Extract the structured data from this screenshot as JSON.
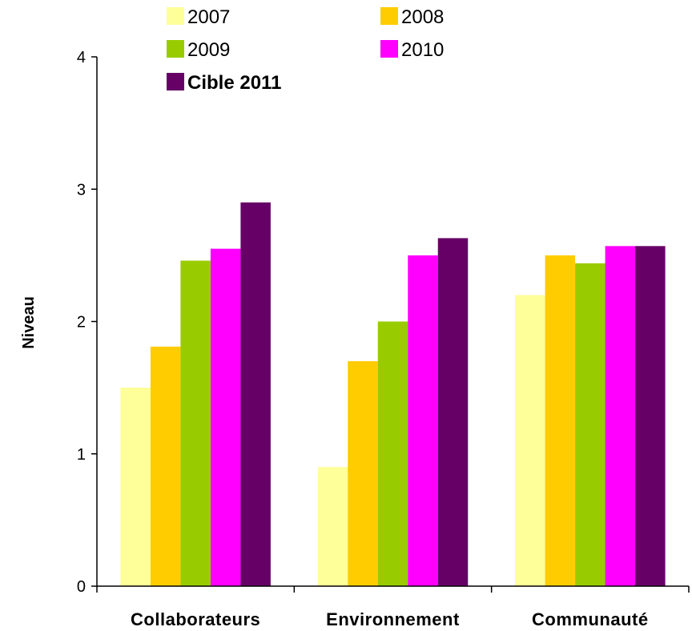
{
  "chart_data": {
    "type": "bar",
    "categories": [
      "Collaborateurs",
      "Environnement",
      "Communauté"
    ],
    "series": [
      {
        "name": "2007",
        "color": "#FFFF99",
        "values": [
          1.5,
          0.9,
          2.2
        ]
      },
      {
        "name": "2008",
        "color": "#FFCC00",
        "values": [
          1.81,
          1.7,
          2.5
        ]
      },
      {
        "name": "2009",
        "color": "#99CC00",
        "values": [
          2.46,
          2.0,
          2.44
        ]
      },
      {
        "name": "2010",
        "color": "#FF00FF",
        "values": [
          2.55,
          2.5,
          2.57
        ]
      },
      {
        "name": "Cible 2011",
        "color": "#660066",
        "values": [
          2.9,
          2.63,
          2.57
        ]
      }
    ],
    "ylabel": "Niveau",
    "xlabel": "",
    "ylim": [
      0,
      4
    ],
    "yticks": [
      "0",
      "1",
      "2",
      "3",
      "4"
    ],
    "grid": false,
    "legend": "top"
  }
}
